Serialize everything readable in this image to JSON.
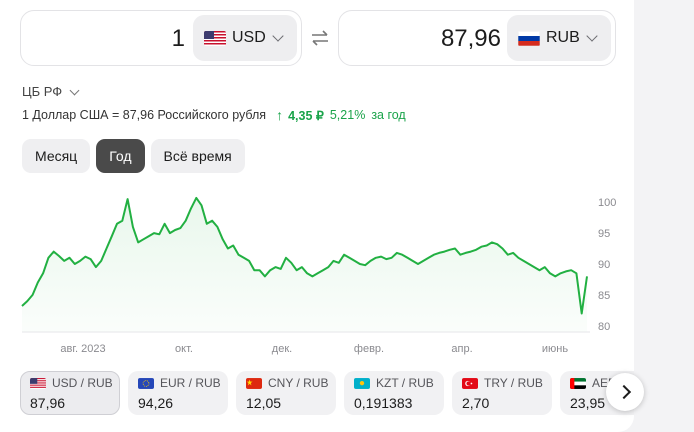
{
  "converter": {
    "from_amount": "1",
    "from_currency": "USD",
    "to_amount": "87,96",
    "to_currency": "RUB"
  },
  "source": {
    "label": "ЦБ РФ"
  },
  "rate": {
    "text": "1 Доллар США = 87,96 Российского рубля",
    "change": "4,35 ₽",
    "percent": "5,21%",
    "period": "за год"
  },
  "tabs": [
    {
      "label": "Месяц",
      "active": false
    },
    {
      "label": "Год",
      "active": true
    },
    {
      "label": "Всё время",
      "active": false
    }
  ],
  "colors": {
    "accent_green": "#1aa34a",
    "line": "#22b042",
    "active_tab": "#4a4a4a"
  },
  "chart_data": {
    "type": "line",
    "title": "",
    "xlabel": "",
    "ylabel": "",
    "x_tick_labels": [
      "авг. 2023",
      "окт.",
      "дек.",
      "февр.",
      "апр.",
      "июнь"
    ],
    "y_tick_labels": [
      "100",
      "95",
      "90",
      "85",
      "80"
    ],
    "ylim": [
      79,
      101
    ],
    "grid": false,
    "series": [
      {
        "values": [
          83.2,
          84.0,
          85.0,
          87.0,
          88.5,
          91.0,
          92.0,
          91.3,
          90.5,
          91.0,
          90.0,
          90.5,
          91.2,
          90.8,
          89.5,
          90.5,
          92.5,
          94.5,
          96.5,
          97.0,
          100.5,
          96.0,
          93.5,
          94.0,
          94.5,
          95.0,
          94.8,
          96.5,
          95.0,
          95.5,
          95.8,
          97.0,
          99.0,
          100.7,
          99.5,
          96.5,
          97.0,
          96.0,
          94.0,
          92.5,
          93.0,
          91.5,
          91.0,
          90.5,
          89.0,
          89.0,
          88.0,
          89.0,
          89.5,
          89.2,
          91.0,
          90.2,
          89.0,
          89.5,
          88.5,
          88.0,
          88.5,
          89.0,
          89.5,
          90.5,
          90.2,
          91.5,
          91.0,
          90.5,
          90.0,
          89.8,
          90.5,
          91.0,
          91.2,
          90.8,
          91.0,
          91.8,
          91.5,
          91.0,
          90.5,
          90.0,
          90.5,
          91.0,
          91.5,
          91.8,
          92.0,
          92.3,
          92.5,
          91.5,
          91.8,
          92.0,
          92.3,
          92.8,
          93.0,
          93.5,
          93.2,
          92.5,
          91.5,
          91.8,
          91.0,
          90.5,
          90.0,
          89.5,
          89.0,
          89.5,
          88.5,
          88.0,
          88.5,
          88.8,
          89.0,
          88.5,
          82.0,
          88.0
        ]
      }
    ]
  },
  "quotes": [
    {
      "pair": "USD / RUB",
      "value": "87,96",
      "flag": "us"
    },
    {
      "pair": "EUR / RUB",
      "value": "94,26",
      "flag": "eu"
    },
    {
      "pair": "CNY / RUB",
      "value": "12,05",
      "flag": "cn"
    },
    {
      "pair": "KZT / RUB",
      "value": "0,191383",
      "flag": "kz"
    },
    {
      "pair": "TRY / RUB",
      "value": "2,70",
      "flag": "tr"
    },
    {
      "pair": "AED / RUB",
      "value": "23,95",
      "flag": "ae"
    }
  ]
}
